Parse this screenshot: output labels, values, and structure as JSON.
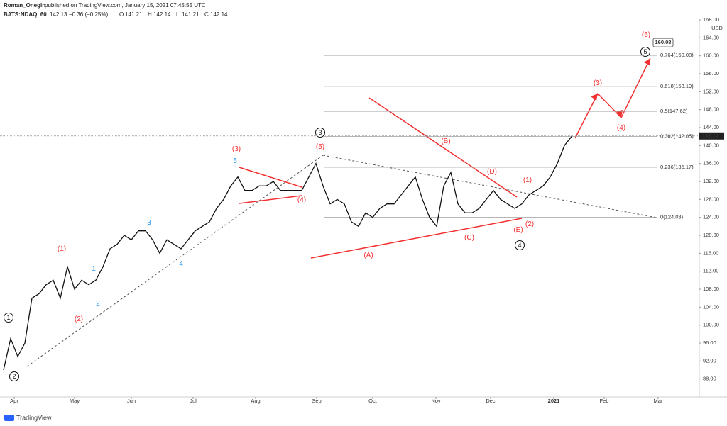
{
  "header": {
    "author": "Roman_Onegin",
    "published": "published on TradingView.com, January 15, 2021 07:45:55 UTC",
    "symbol": "BATS:NDAQ, 60",
    "last": "142.13",
    "change": "−0.36 (−0.25%)",
    "ohlc": [
      {
        "key": "O",
        "value": "141.21"
      },
      {
        "key": "H",
        "value": "142.14"
      },
      {
        "key": "L",
        "value": "141.21"
      },
      {
        "key": "C",
        "value": "142.14"
      }
    ]
  },
  "chart_data": {
    "type": "line",
    "color": "#111111",
    "values": [
      90,
      97,
      93,
      96,
      106,
      107,
      109,
      110,
      106,
      113,
      108,
      110,
      109,
      110,
      113,
      117,
      118,
      120,
      119,
      121,
      121,
      119,
      116,
      119,
      118,
      117,
      119,
      121,
      122,
      123,
      126,
      128,
      131,
      133,
      130,
      130,
      131,
      131,
      132,
      130,
      130,
      130,
      130,
      133,
      136,
      131,
      127,
      128,
      127,
      123,
      122,
      125,
      124,
      126,
      127,
      127,
      129,
      131,
      133,
      128,
      124,
      122,
      131,
      134,
      127,
      125,
      125,
      126,
      128,
      130,
      128,
      127,
      126,
      127,
      129,
      130,
      131,
      133,
      136,
      140,
      142
    ],
    "xlim": [
      -0.5,
      98
    ],
    "xticks": [
      {
        "value": 1.5,
        "label": "Apr"
      },
      {
        "value": 10,
        "label": "May"
      },
      {
        "value": 18,
        "label": "Jun"
      },
      {
        "value": 26.7,
        "label": "Jul"
      },
      {
        "value": 35.5,
        "label": "Aug"
      },
      {
        "value": 44.1,
        "label": "Sep"
      },
      {
        "value": 52,
        "label": "Oct"
      },
      {
        "value": 60.9,
        "label": "Nov"
      },
      {
        "value": 68.6,
        "label": "Dec"
      },
      {
        "value": 77.5,
        "label": "2021"
      },
      {
        "value": 84.6,
        "label": "Feb"
      },
      {
        "value": 92.2,
        "label": "Mar"
      }
    ],
    "ylim": [
      84,
      168
    ],
    "yticks": [
      {
        "value": 88,
        "label": "88.00"
      },
      {
        "value": 92,
        "label": "92.00"
      },
      {
        "value": 96,
        "label": "96.00"
      },
      {
        "value": 100,
        "label": "100.00"
      },
      {
        "value": 104,
        "label": "104.00"
      },
      {
        "value": 108,
        "label": "108.00"
      },
      {
        "value": 112,
        "label": "112.00"
      },
      {
        "value": 116,
        "label": "116.00"
      },
      {
        "value": 120,
        "label": "120.00"
      },
      {
        "value": 124,
        "label": "124.00"
      },
      {
        "value": 128,
        "label": "128.00"
      },
      {
        "value": 132,
        "label": "132.00"
      },
      {
        "value": 136,
        "label": "136.00"
      },
      {
        "value": 140,
        "label": "140.00"
      },
      {
        "value": 144,
        "label": "144.00"
      },
      {
        "value": 148,
        "label": "148.00"
      },
      {
        "value": 152,
        "label": "152.00"
      },
      {
        "value": 156,
        "label": "156.00"
      },
      {
        "value": 160,
        "label": "160.00"
      },
      {
        "value": 164,
        "label": "164.00"
      },
      {
        "value": 168,
        "label": "168.00"
      }
    ],
    "currency": "USD",
    "last_price": {
      "value": 142.14,
      "label": "142.14"
    },
    "target": {
      "value": 160.08,
      "label": "160.08"
    },
    "fib_levels": [
      {
        "value": 160.08,
        "label": "0.764(160.08)"
      },
      {
        "value": 153.19,
        "label": "0.618(153.19)"
      },
      {
        "value": 147.62,
        "label": "0.5(147.62)"
      },
      {
        "value": 142.05,
        "label": "0.382(142.05)"
      },
      {
        "value": 135.17,
        "label": "0.236(135.17)"
      },
      {
        "value": 124.03,
        "label": "0(124.03)"
      }
    ],
    "annotations": [
      {
        "text": "1",
        "style": "circle"
      },
      {
        "text": "2",
        "style": "circle"
      },
      {
        "text": "3",
        "style": "circle"
      },
      {
        "text": "4",
        "style": "circle"
      },
      {
        "text": "5",
        "style": "circle"
      },
      {
        "text": "(1)",
        "style": "red"
      },
      {
        "text": "(2)",
        "style": "red"
      },
      {
        "text": "(3)",
        "style": "red"
      },
      {
        "text": "(4)",
        "style": "red"
      },
      {
        "text": "(5)",
        "style": "red"
      },
      {
        "text": "(A)",
        "style": "red"
      },
      {
        "text": "(B)",
        "style": "red"
      },
      {
        "text": "(C)",
        "style": "red"
      },
      {
        "text": "(D)",
        "style": "red"
      },
      {
        "text": "(E)",
        "style": "red"
      },
      {
        "text": "(1)",
        "style": "red"
      },
      {
        "text": "(2)",
        "style": "red"
      },
      {
        "text": "(3)",
        "style": "red"
      },
      {
        "text": "(4)",
        "style": "red"
      },
      {
        "text": "(5)",
        "style": "red"
      },
      {
        "text": "1",
        "style": "blue"
      },
      {
        "text": "2",
        "style": "blue"
      },
      {
        "text": "3",
        "style": "blue"
      },
      {
        "text": "4",
        "style": "blue"
      },
      {
        "text": "5",
        "style": "blue"
      }
    ]
  },
  "footer": {
    "brand": "TradingView"
  }
}
